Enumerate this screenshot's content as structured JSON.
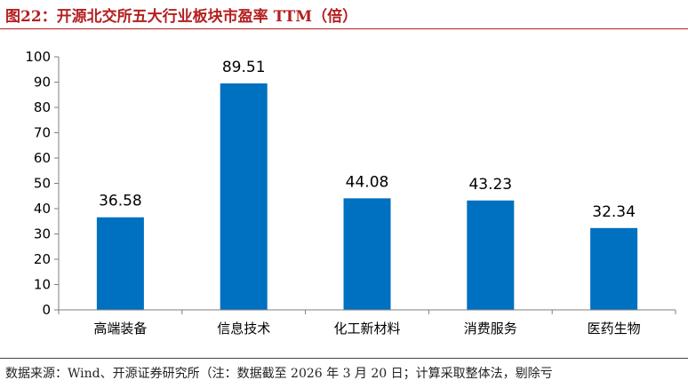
{
  "header": {
    "title": "图22：开源北交所五大行业板块市盈率 TTM（倍）"
  },
  "footer": {
    "source": "数据来源：Wind、开源证券研究所（注：数据截至 2026 年 3 月 20 日；计算采取整体法，剔除亏"
  },
  "chart_data": {
    "type": "bar",
    "categories": [
      "高端装备",
      "信息技术",
      "化工新材料",
      "消费服务",
      "医药生物"
    ],
    "values": [
      36.58,
      89.51,
      44.08,
      43.23,
      32.34
    ],
    "data_labels": [
      "36.58",
      "89.51",
      "44.08",
      "43.23",
      "32.34"
    ],
    "title": "",
    "xlabel": "",
    "ylabel": "",
    "ylim": [
      0,
      100
    ],
    "yticks": [
      0,
      10,
      20,
      30,
      40,
      50,
      60,
      70,
      80,
      90,
      100
    ],
    "grid": false,
    "bar_color": "#0070c0"
  }
}
